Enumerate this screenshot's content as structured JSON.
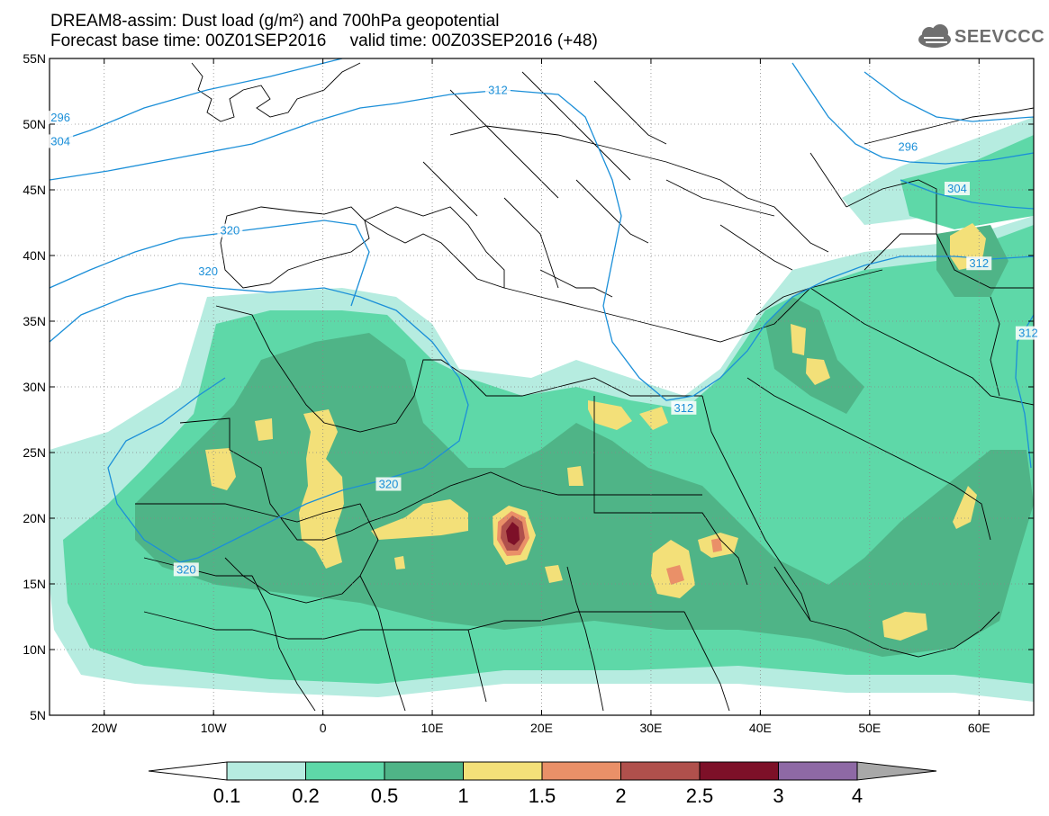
{
  "title": {
    "line1": "DREAM8-assim: Dust load (g/m²) and 700hPa geopotential",
    "line2": "Forecast base time: 00Z01SEP2016     valid time: 00Z03SEP2016 (+48)"
  },
  "logo": {
    "icon": "cloud-icon",
    "text": "SEEVCCC"
  },
  "axes": {
    "lon_range": [
      -25,
      65
    ],
    "lat_range": [
      5,
      55
    ],
    "lat_ticks": [
      {
        "value": 55,
        "label": "55N"
      },
      {
        "value": 50,
        "label": "50N"
      },
      {
        "value": 45,
        "label": "45N"
      },
      {
        "value": 40,
        "label": "40N"
      },
      {
        "value": 35,
        "label": "35N"
      },
      {
        "value": 30,
        "label": "30N"
      },
      {
        "value": 25,
        "label": "25N"
      },
      {
        "value": 20,
        "label": "20N"
      },
      {
        "value": 15,
        "label": "15N"
      },
      {
        "value": 10,
        "label": "10N"
      },
      {
        "value": 5,
        "label": "5N"
      }
    ],
    "lon_ticks": [
      {
        "value": -20,
        "label": "20W"
      },
      {
        "value": -10,
        "label": "10W"
      },
      {
        "value": 0,
        "label": "0"
      },
      {
        "value": 10,
        "label": "10E"
      },
      {
        "value": 20,
        "label": "20E"
      },
      {
        "value": 30,
        "label": "30E"
      },
      {
        "value": 40,
        "label": "40E"
      },
      {
        "value": 50,
        "label": "50E"
      },
      {
        "value": 60,
        "label": "60E"
      }
    ]
  },
  "contour_labels": [
    {
      "text": "320",
      "lon": -8.5,
      "lat": 41.8
    },
    {
      "text": "320",
      "lon": -10.5,
      "lat": 38.7
    },
    {
      "text": "320",
      "lon": 6,
      "lat": 22.5
    },
    {
      "text": "320",
      "lon": -12.5,
      "lat": 16
    },
    {
      "text": "312",
      "lon": 16,
      "lat": 52.5
    },
    {
      "text": "312",
      "lon": 33,
      "lat": 28.3
    },
    {
      "text": "312",
      "lon": 60,
      "lat": 39.3
    },
    {
      "text": "312",
      "lon": 64.5,
      "lat": 34
    },
    {
      "text": "304",
      "lon": 58,
      "lat": 45
    },
    {
      "text": "296",
      "lon": 53.5,
      "lat": 48.2
    },
    {
      "text": "296",
      "lon": -24,
      "lat": 50.4
    },
    {
      "text": "304",
      "lon": -24,
      "lat": 48.6
    }
  ],
  "legend": {
    "colors": [
      "#b6ece0",
      "#5ed8a8",
      "#4fb487",
      "#f3e079",
      "#ea9068",
      "#b0504c",
      "#7d1028",
      "#8e69a5"
    ],
    "labels": [
      "0.1",
      "0.2",
      "0.5",
      "1",
      "1.5",
      "2",
      "2.5",
      "3",
      "4"
    ],
    "under_color": "#ffffff",
    "over_color": "#a8a8a8"
  },
  "colors": {
    "contour": "#1b8fd8",
    "boundary": "#000000",
    "dust_0_1": "#b6ece0",
    "dust_0_2": "#5ed8a8",
    "dust_0_5": "#4fb487",
    "dust_1": "#f3e079",
    "dust_1_5": "#ea9068",
    "dust_2": "#b0504c",
    "dust_2_5": "#7d1028"
  }
}
